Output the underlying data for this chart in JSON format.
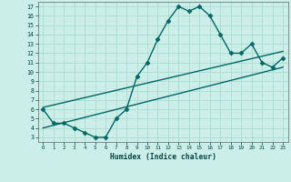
{
  "title": "",
  "xlabel": "Humidex (Indice chaleur)",
  "curve_x": [
    0,
    1,
    2,
    3,
    4,
    5,
    6,
    7,
    8,
    9,
    10,
    11,
    12,
    13,
    14,
    15,
    16,
    17,
    18,
    19,
    20,
    21,
    22,
    23
  ],
  "curve_y": [
    6.0,
    4.5,
    4.5,
    4.0,
    3.5,
    3.0,
    3.0,
    5.0,
    6.0,
    9.5,
    11.0,
    13.5,
    15.5,
    17.0,
    16.5,
    17.0,
    16.0,
    14.0,
    12.0,
    12.0,
    13.0,
    11.0,
    10.5,
    11.5
  ],
  "line1_x": [
    0,
    23
  ],
  "line1_y": [
    6.2,
    12.2
  ],
  "line2_x": [
    0,
    23
  ],
  "line2_y": [
    4.0,
    10.5
  ],
  "curve_color": "#006666",
  "line_color": "#006666",
  "bg_color": "#cceee8",
  "grid_color": "#aaddcc",
  "xlim": [
    -0.5,
    23.5
  ],
  "ylim": [
    2.5,
    17.5
  ],
  "xticks": [
    0,
    1,
    2,
    3,
    4,
    5,
    6,
    7,
    8,
    9,
    10,
    11,
    12,
    13,
    14,
    15,
    16,
    17,
    18,
    19,
    20,
    21,
    22,
    23
  ],
  "yticks": [
    3,
    4,
    5,
    6,
    7,
    8,
    9,
    10,
    11,
    12,
    13,
    14,
    15,
    16,
    17
  ],
  "markersize": 2.5,
  "linewidth": 1.0
}
